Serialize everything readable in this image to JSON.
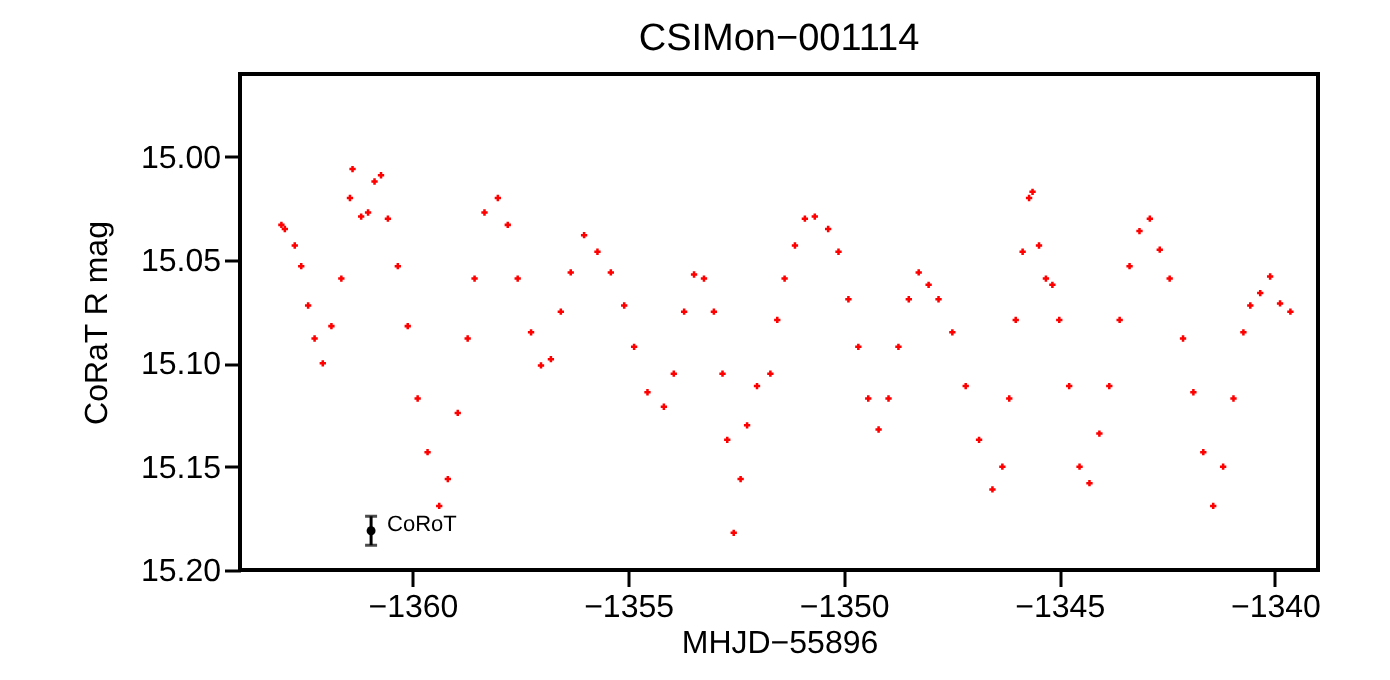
{
  "chart_data": {
    "type": "scatter",
    "title": "CSIMon−001114",
    "xlabel": "MHJD−55896",
    "ylabel": "CoRaT R mag",
    "xlim": [
      -1364,
      -1339
    ],
    "ylim": [
      15.2,
      14.96
    ],
    "xticks": [
      -1360,
      -1355,
      -1350,
      -1345,
      -1340
    ],
    "yticks": [
      {
        "value": 15,
        "label": "15.00"
      },
      {
        "value": 15.05,
        "label": "15.05"
      },
      {
        "value": 15.1,
        "label": "15.10"
      },
      {
        "value": 15.15,
        "label": "15.15"
      },
      {
        "value": 15.2,
        "label": "15.20"
      }
    ],
    "grid": false,
    "marker": "cross",
    "series": [
      {
        "color": "#ff0000",
        "x": [
          -1363.04,
          -1362.96,
          -1362.73,
          -1362.58,
          -1362.42,
          -1362.27,
          -1362.08,
          -1361.88,
          -1361.65,
          -1361.45,
          -1361.39,
          -1361.19,
          -1361.03,
          -1360.88,
          -1360.73,
          -1360.57,
          -1360.34,
          -1360.11,
          -1359.88,
          -1359.65,
          -1359.38,
          -1359.18,
          -1358.95,
          -1358.72,
          -1358.56,
          -1358.33,
          -1358.02,
          -1357.79,
          -1357.56,
          -1357.25,
          -1357.02,
          -1356.79,
          -1356.56,
          -1356.33,
          -1356.02,
          -1355.71,
          -1355.4,
          -1355.09,
          -1354.86,
          -1354.55,
          -1354.17,
          -1353.94,
          -1353.7,
          -1353.47,
          -1353.24,
          -1353.01,
          -1352.81,
          -1352.7,
          -1352.55,
          -1352.39,
          -1352.24,
          -1352.01,
          -1351.7,
          -1351.54,
          -1351.37,
          -1351.13,
          -1350.9,
          -1350.67,
          -1350.36,
          -1350.12,
          -1349.89,
          -1349.66,
          -1349.43,
          -1349.19,
          -1348.96,
          -1348.73,
          -1348.49,
          -1348.26,
          -1348.03,
          -1347.8,
          -1347.48,
          -1347.17,
          -1346.86,
          -1346.55,
          -1346.32,
          -1346.16,
          -1346.01,
          -1345.85,
          -1345.7,
          -1345.62,
          -1345.47,
          -1345.31,
          -1345.16,
          -1345,
          -1344.77,
          -1344.53,
          -1344.3,
          -1344.07,
          -1343.84,
          -1343.6,
          -1343.37,
          -1343.14,
          -1342.9,
          -1342.67,
          -1342.44,
          -1342.13,
          -1341.89,
          -1341.66,
          -1341.43,
          -1341.2,
          -1340.96,
          -1340.73,
          -1340.57,
          -1340.34,
          -1340.11,
          -1339.88,
          -1339.64
        ],
        "values": [
          15.033,
          15.035,
          15.043,
          15.053,
          15.072,
          15.088,
          15.1,
          15.082,
          15.059,
          15.02,
          15.006,
          15.029,
          15.027,
          15.012,
          15.009,
          15.03,
          15.053,
          15.082,
          15.117,
          15.143,
          15.169,
          15.156,
          15.124,
          15.088,
          15.059,
          15.027,
          15.02,
          15.033,
          15.059,
          15.085,
          15.101,
          15.098,
          15.075,
          15.056,
          15.038,
          15.046,
          15.056,
          15.072,
          15.092,
          15.114,
          15.121,
          15.105,
          15.075,
          15.057,
          15.059,
          15.075,
          15.105,
          15.137,
          15.182,
          15.156,
          15.13,
          15.111,
          15.105,
          15.079,
          15.059,
          15.043,
          15.03,
          15.029,
          15.035,
          15.046,
          15.069,
          15.092,
          15.117,
          15.132,
          15.117,
          15.092,
          15.069,
          15.056,
          15.062,
          15.069,
          15.085,
          15.111,
          15.137,
          15.161,
          15.15,
          15.117,
          15.079,
          15.046,
          15.02,
          15.017,
          15.043,
          15.059,
          15.062,
          15.079,
          15.111,
          15.15,
          15.158,
          15.134,
          15.111,
          15.079,
          15.053,
          15.036,
          15.03,
          15.045,
          15.059,
          15.088,
          15.114,
          15.143,
          15.169,
          15.15,
          15.117,
          15.085,
          15.072,
          15.066,
          15.058,
          15.071,
          15.075
        ]
      },
      {
        "color": "#000000",
        "marker": "circle",
        "x": [
          -1360.96
        ],
        "values": [
          15.181
        ],
        "errors": [
          0.007
        ]
      }
    ],
    "annotations": [
      {
        "text": "CoRoT",
        "x": -1360.96,
        "y": 15.181
      }
    ]
  }
}
